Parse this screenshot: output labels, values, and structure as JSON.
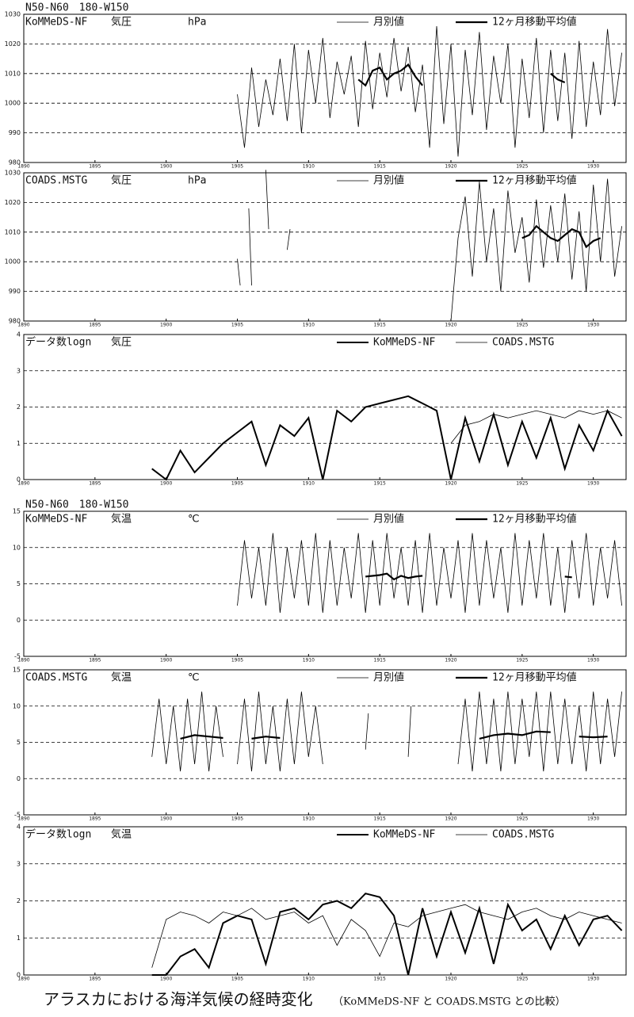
{
  "caption": "アラスカにおける海洋気候の経時変化",
  "caption_note": "（KoMMeDS-NF と COADS.MSTG との比較）",
  "chart_data": [
    {
      "type": "line",
      "region": "N50-N60　180-W150",
      "title": "KoMMeDS-NF",
      "variable": "気圧",
      "unit": "hPa",
      "xlim": [
        1890,
        1932.3
      ],
      "xticks": [
        1890,
        1895,
        1900,
        1905,
        1910,
        1915,
        1920,
        1925,
        1930
      ],
      "ylim": [
        980,
        1030
      ],
      "yticks": [
        980,
        990,
        1000,
        1010,
        1020,
        1030
      ],
      "grid": true,
      "series": [
        {
          "name": "月別値",
          "color": "#000000",
          "line_width": 0.8,
          "x": [
            1905,
            1905.5,
            1906,
            1906.5,
            1907,
            1907.5,
            1908,
            1908.5,
            1909,
            1909.5,
            1910,
            1910.5,
            1911,
            1911.5,
            1912,
            1912.5,
            1913,
            1913.5,
            1914,
            1914.5,
            1915,
            1915.5,
            1916,
            1916.5,
            1917,
            1917.5,
            1918,
            1918.5,
            1919,
            1919.5,
            1920,
            1920.5,
            1921,
            1921.5,
            1922,
            1922.5,
            1923,
            1923.5,
            1924,
            1924.5,
            1925,
            1925.5,
            1926,
            1926.5,
            1927,
            1927.5,
            1928,
            1928.5,
            1929,
            1929.5,
            1930,
            1930.5,
            1931,
            1931.5,
            1932
          ],
          "values": [
            1003,
            985,
            1012,
            992,
            1008,
            996,
            1015,
            994,
            1020,
            990,
            1018,
            1000,
            1022,
            995,
            1014,
            1003,
            1016,
            992,
            1021,
            998,
            1017,
            1002,
            1022,
            1004,
            1019,
            997,
            1013,
            985,
            1026,
            993,
            1020,
            982,
            1018,
            996,
            1024,
            991,
            1016,
            1000,
            1020,
            985,
            1015,
            995,
            1022,
            990,
            1018,
            994,
            1017,
            988,
            1021,
            992,
            1014,
            996,
            1025,
            999,
            1017
          ]
        },
        {
          "name": "12ヶ月移動平均値",
          "color": "#000000",
          "line_width": 2.2,
          "x": [
            1913.5,
            1914,
            1914.5,
            1915,
            1915.5,
            1916,
            1916.5,
            1917,
            1917.5,
            1918,
            1922,
            1927,
            1927.5,
            1928
          ],
          "values": [
            1008,
            1006,
            1011,
            1012,
            1008,
            1010,
            1011,
            1013,
            1009,
            1006,
            null,
            1010,
            1008,
            1007
          ]
        }
      ]
    },
    {
      "type": "line",
      "title": "COADS.MSTG",
      "variable": "気圧",
      "unit": "hPa",
      "xlim": [
        1890,
        1932.3
      ],
      "xticks": [
        1890,
        1895,
        1900,
        1905,
        1910,
        1915,
        1920,
        1925,
        1930
      ],
      "ylim": [
        980,
        1030
      ],
      "yticks": [
        980,
        990,
        1000,
        1010,
        1020,
        1030
      ],
      "grid": true,
      "series": [
        {
          "name": "月別値",
          "color": "#000000",
          "line_width": 0.8,
          "x": [
            1905,
            1905.2,
            1905.5,
            1905.8,
            1906,
            1906.5,
            1907,
            1907.2,
            1907.5,
            1908.5,
            1908.7,
            1914,
            1920,
            1920.5,
            1921,
            1921.5,
            1922,
            1922.5,
            1923,
            1923.5,
            1924,
            1924.5,
            1925,
            1925.5,
            1926,
            1926.5,
            1927,
            1927.5,
            1928,
            1928.5,
            1929,
            1929.5,
            1930,
            1930.5,
            1931,
            1931.5,
            1932
          ],
          "values": [
            1001,
            992,
            null,
            1018,
            992,
            null,
            1031,
            1011,
            null,
            1004,
            1011,
            null,
            980,
            1008,
            1022,
            995,
            1027,
            1000,
            1018,
            990,
            1024,
            1003,
            1015,
            993,
            1021,
            998,
            1019,
            1000,
            1023,
            994,
            1017,
            990,
            1026,
            1000,
            1028,
            995,
            1012
          ]
        },
        {
          "name": "12ヶ月移動平均値",
          "color": "#000000",
          "line_width": 2.2,
          "x": [
            1925,
            1925.5,
            1926,
            1926.5,
            1927,
            1927.5,
            1928,
            1928.5,
            1929,
            1929.5,
            1930,
            1930.5
          ],
          "values": [
            1008,
            1009,
            1012,
            1010,
            1008,
            1007,
            1009,
            1011,
            1010,
            1005,
            1007,
            1008
          ]
        }
      ]
    },
    {
      "type": "line",
      "title": "データ数logn",
      "variable": "気圧",
      "xlim": [
        1890,
        1932.3
      ],
      "xticks": [
        1890,
        1895,
        1900,
        1905,
        1910,
        1915,
        1920,
        1925,
        1930
      ],
      "ylim": [
        0,
        4
      ],
      "yticks": [
        0,
        1,
        2,
        3,
        4
      ],
      "grid": true,
      "series": [
        {
          "name": "KoMMeDS-NF",
          "color": "#000000",
          "line_width": 2,
          "x": [
            1899,
            1900,
            1901,
            1902,
            1903,
            1904,
            1905,
            1906,
            1907,
            1908,
            1909,
            1910,
            1911,
            1912,
            1913,
            1914,
            1915,
            1916,
            1917,
            1918,
            1919,
            1920,
            1921,
            1922,
            1923,
            1924,
            1925,
            1926,
            1927,
            1928,
            1929,
            1930,
            1931,
            1932
          ],
          "values": [
            0.3,
            0,
            0.8,
            0.2,
            0.6,
            1.0,
            1.3,
            1.6,
            0.4,
            1.5,
            1.2,
            1.7,
            0,
            1.9,
            1.6,
            2.0,
            2.1,
            2.2,
            2.3,
            2.1,
            1.9,
            0,
            1.7,
            0.5,
            1.8,
            0.4,
            1.6,
            0.6,
            1.7,
            0.3,
            1.5,
            0.8,
            1.9,
            1.2
          ]
        },
        {
          "name": "COADS.MSTG",
          "color": "#000000",
          "line_width": 0.8,
          "x": [
            1920,
            1921,
            1922,
            1923,
            1924,
            1925,
            1926,
            1927,
            1928,
            1929,
            1930,
            1931,
            1932
          ],
          "values": [
            1.0,
            1.5,
            1.6,
            1.8,
            1.7,
            1.8,
            1.9,
            1.8,
            1.7,
            1.9,
            1.8,
            1.9,
            1.7
          ]
        }
      ]
    },
    {
      "type": "line",
      "region": "N50-N60　180-W150",
      "title": "KoMMeDS-NF",
      "variable": "気温",
      "unit": "℃",
      "xlim": [
        1890,
        1932.3
      ],
      "xticks": [
        1890,
        1895,
        1900,
        1905,
        1910,
        1915,
        1920,
        1925,
        1930
      ],
      "ylim": [
        -5,
        15
      ],
      "yticks": [
        -5,
        0,
        5,
        10,
        15
      ],
      "grid": true,
      "series": [
        {
          "name": "月別値",
          "color": "#000000",
          "line_width": 0.8,
          "x": [
            1905,
            1905.5,
            1906,
            1906.5,
            1907,
            1907.5,
            1908,
            1908.5,
            1909,
            1909.5,
            1910,
            1910.5,
            1911,
            1911.5,
            1912,
            1912.5,
            1913,
            1913.5,
            1914,
            1914.5,
            1915,
            1915.5,
            1916,
            1916.5,
            1917,
            1917.5,
            1918,
            1918.5,
            1919,
            1919.5,
            1920,
            1920.5,
            1921,
            1921.5,
            1922,
            1922.5,
            1923,
            1923.5,
            1924,
            1924.5,
            1925,
            1925.5,
            1926,
            1926.5,
            1927,
            1927.5,
            1928,
            1928.5,
            1929,
            1929.5,
            1930,
            1930.5,
            1931,
            1931.5,
            1932
          ],
          "values": [
            2,
            11,
            3,
            10,
            2,
            12,
            1,
            10,
            3,
            11,
            2,
            12,
            1,
            11,
            2,
            10,
            3,
            12,
            1,
            11,
            2,
            12,
            3,
            10,
            2,
            11,
            1,
            12,
            2,
            10,
            3,
            11,
            1,
            12,
            2,
            11,
            3,
            10,
            1,
            12,
            2,
            11,
            3,
            12,
            2,
            10,
            1,
            11,
            3,
            12,
            2,
            10,
            3,
            11,
            2
          ]
        },
        {
          "name": "12ヶ月移動平均値",
          "color": "#000000",
          "line_width": 2.2,
          "x": [
            1914,
            1915,
            1915.5,
            1916,
            1916.5,
            1917,
            1917.5,
            1918,
            1922,
            1928,
            1928.5
          ],
          "values": [
            6,
            6.2,
            6.4,
            5.6,
            6.1,
            5.8,
            6.0,
            6.1,
            null,
            6.0,
            5.9
          ]
        }
      ]
    },
    {
      "type": "line",
      "title": "COADS.MSTG",
      "variable": "気温",
      "unit": "℃",
      "xlim": [
        1890,
        1932.3
      ],
      "xticks": [
        1890,
        1895,
        1900,
        1905,
        1910,
        1915,
        1920,
        1925,
        1930
      ],
      "ylim": [
        -5,
        15
      ],
      "yticks": [
        -5,
        0,
        5,
        10,
        15
      ],
      "grid": true,
      "series": [
        {
          "name": "月別値",
          "color": "#000000",
          "line_width": 0.8,
          "x": [
            1899,
            1899.5,
            1900,
            1900.5,
            1901,
            1901.5,
            1902,
            1902.5,
            1903,
            1903.5,
            1904,
            1904.5,
            1905,
            1905.5,
            1906,
            1906.5,
            1907,
            1907.5,
            1908,
            1908.5,
            1909,
            1909.5,
            1910,
            1910.5,
            1911,
            1911.5,
            1914,
            1914.2,
            1915,
            1917,
            1917.2,
            1918,
            1920.5,
            1921,
            1921.5,
            1922,
            1922.5,
            1923,
            1923.5,
            1924,
            1924.5,
            1925,
            1925.5,
            1926,
            1926.5,
            1927,
            1927.5,
            1928,
            1928.5,
            1929,
            1929.5,
            1930,
            1930.5,
            1931,
            1931.5,
            1932
          ],
          "values": [
            3,
            11,
            2,
            10,
            1,
            11,
            2,
            12,
            1,
            10,
            3,
            null,
            2,
            11,
            1,
            12,
            2,
            10,
            1,
            11,
            2,
            12,
            3,
            10,
            2,
            null,
            4,
            9,
            null,
            3,
            10,
            null,
            2,
            11,
            1,
            12,
            2,
            11,
            1,
            12,
            2,
            11,
            3,
            12,
            1,
            12,
            2,
            11,
            2,
            10,
            1,
            12,
            2,
            11,
            3,
            12
          ]
        },
        {
          "name": "12ヶ月移動平均値",
          "color": "#000000",
          "line_width": 2.2,
          "x": [
            1901,
            1902,
            1903,
            1904,
            1905,
            1906,
            1907,
            1908,
            1920,
            1922,
            1923,
            1924,
            1925,
            1926,
            1927,
            1928,
            1929,
            1930,
            1931
          ],
          "values": [
            5.5,
            6,
            5.8,
            5.6,
            null,
            5.5,
            5.8,
            5.6,
            null,
            5.5,
            6,
            6.2,
            6.0,
            6.5,
            6.4,
            null,
            5.8,
            5.7,
            5.8
          ]
        }
      ]
    },
    {
      "type": "line",
      "title": "データ数logn",
      "variable": "気温",
      "xlim": [
        1890,
        1932.3
      ],
      "xticks": [
        1890,
        1895,
        1900,
        1905,
        1910,
        1915,
        1920,
        1925,
        1930
      ],
      "ylim": [
        0,
        4
      ],
      "yticks": [
        0,
        1,
        2,
        3,
        4
      ],
      "grid": true,
      "series": [
        {
          "name": "KoMMeDS-NF",
          "color": "#000000",
          "line_width": 2,
          "x": [
            1899,
            1900,
            1901,
            1902,
            1903,
            1904,
            1905,
            1906,
            1907,
            1908,
            1909,
            1910,
            1911,
            1912,
            1913,
            1914,
            1915,
            1916,
            1917,
            1918,
            1919,
            1920,
            1921,
            1922,
            1923,
            1924,
            1925,
            1926,
            1927,
            1928,
            1929,
            1930,
            1931,
            1932
          ],
          "values": [
            0,
            0,
            0.5,
            0.7,
            0.2,
            1.4,
            1.6,
            1.5,
            0.3,
            1.7,
            1.8,
            1.5,
            1.9,
            2.0,
            1.8,
            2.2,
            2.1,
            1.6,
            0,
            1.8,
            0.5,
            1.7,
            0.6,
            1.8,
            0.3,
            1.9,
            1.2,
            1.5,
            0.7,
            1.6,
            0.8,
            1.5,
            1.6,
            1.2
          ]
        },
        {
          "name": "COADS.MSTG",
          "color": "#000000",
          "line_width": 0.8,
          "x": [
            1899,
            1900,
            1901,
            1902,
            1903,
            1904,
            1905,
            1906,
            1907,
            1908,
            1909,
            1910,
            1911,
            1912,
            1913,
            1914,
            1915,
            1916,
            1917,
            1918,
            1919,
            1920,
            1921,
            1922,
            1923,
            1924,
            1925,
            1926,
            1927,
            1928,
            1929,
            1930,
            1931,
            1932
          ],
          "values": [
            0.2,
            1.5,
            1.7,
            1.6,
            1.4,
            1.7,
            1.6,
            1.8,
            1.5,
            1.6,
            1.7,
            1.4,
            1.6,
            0.8,
            1.5,
            1.2,
            0.5,
            1.4,
            1.3,
            1.6,
            1.7,
            1.8,
            1.9,
            1.7,
            1.6,
            1.5,
            1.7,
            1.8,
            1.6,
            1.5,
            1.7,
            1.6,
            1.5,
            1.4
          ]
        }
      ]
    }
  ]
}
